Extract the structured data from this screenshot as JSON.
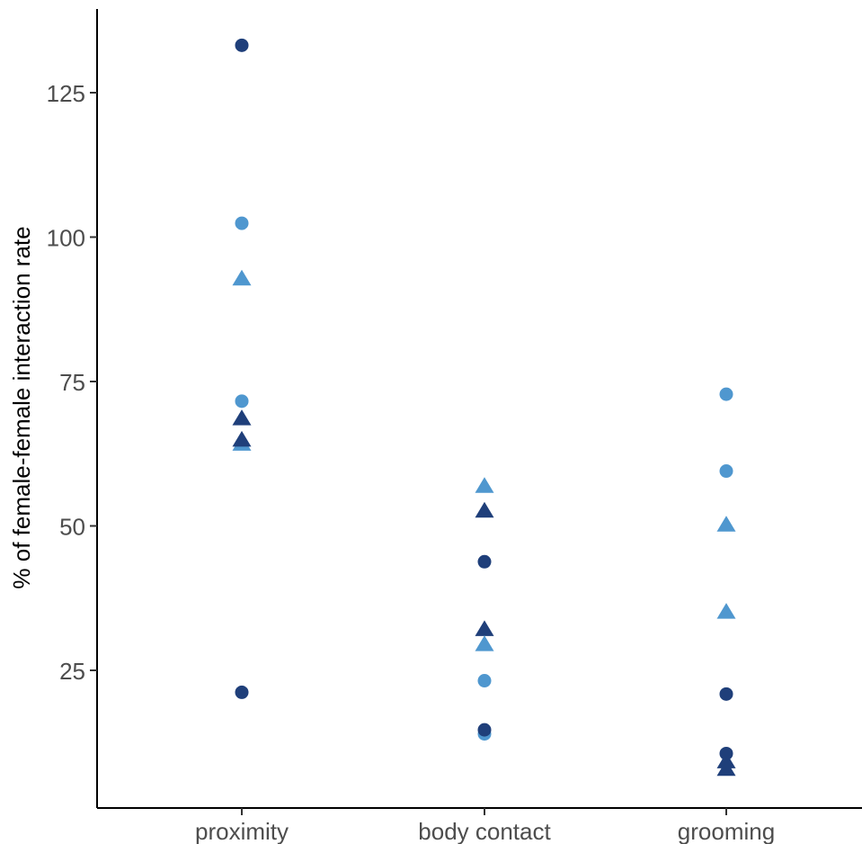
{
  "chart_data": {
    "type": "scatter",
    "title": "",
    "xlabel": "",
    "ylabel": "% of female-female interaction rate",
    "categories": [
      "proximity",
      "body contact",
      "grooming"
    ],
    "y_ticks": [
      25,
      50,
      75,
      100,
      125
    ],
    "y_tick_labels": [
      "25",
      "50",
      "75",
      "100",
      "125"
    ],
    "ylim": [
      2,
      140
    ],
    "grid": false,
    "legend": "none",
    "colors": {
      "dark": "#1f3f7a",
      "light": "#4f97cf"
    },
    "points": [
      {
        "category": "proximity",
        "y": 133.2,
        "shape": "circle",
        "color": "dark"
      },
      {
        "category": "proximity",
        "y": 102.4,
        "shape": "circle",
        "color": "light"
      },
      {
        "category": "proximity",
        "y": 92.8,
        "shape": "triangle",
        "color": "light"
      },
      {
        "category": "proximity",
        "y": 71.6,
        "shape": "circle",
        "color": "light"
      },
      {
        "category": "proximity",
        "y": 68.6,
        "shape": "triangle",
        "color": "dark"
      },
      {
        "category": "proximity",
        "y": 64.2,
        "shape": "triangle",
        "color": "light"
      },
      {
        "category": "proximity",
        "y": 64.9,
        "shape": "triangle",
        "color": "dark"
      },
      {
        "category": "proximity",
        "y": 21.2,
        "shape": "circle",
        "color": "dark"
      },
      {
        "category": "body contact",
        "y": 56.9,
        "shape": "triangle",
        "color": "light"
      },
      {
        "category": "body contact",
        "y": 52.6,
        "shape": "triangle",
        "color": "dark"
      },
      {
        "category": "body contact",
        "y": 43.8,
        "shape": "circle",
        "color": "dark"
      },
      {
        "category": "body contact",
        "y": 32.1,
        "shape": "triangle",
        "color": "dark"
      },
      {
        "category": "body contact",
        "y": 29.5,
        "shape": "triangle",
        "color": "light"
      },
      {
        "category": "body contact",
        "y": 23.2,
        "shape": "circle",
        "color": "light"
      },
      {
        "category": "body contact",
        "y": 14.0,
        "shape": "circle",
        "color": "light"
      },
      {
        "category": "body contact",
        "y": 14.7,
        "shape": "circle",
        "color": "dark"
      },
      {
        "category": "grooming",
        "y": 72.8,
        "shape": "circle",
        "color": "light"
      },
      {
        "category": "grooming",
        "y": 59.5,
        "shape": "circle",
        "color": "light"
      },
      {
        "category": "grooming",
        "y": 50.2,
        "shape": "triangle",
        "color": "light"
      },
      {
        "category": "grooming",
        "y": 35.1,
        "shape": "triangle",
        "color": "light"
      },
      {
        "category": "grooming",
        "y": 20.9,
        "shape": "circle",
        "color": "dark"
      },
      {
        "category": "grooming",
        "y": 10.6,
        "shape": "circle",
        "color": "dark"
      },
      {
        "category": "grooming",
        "y": 9.2,
        "shape": "triangle",
        "color": "dark"
      },
      {
        "category": "grooming",
        "y": 7.9,
        "shape": "triangle",
        "color": "dark"
      }
    ]
  }
}
